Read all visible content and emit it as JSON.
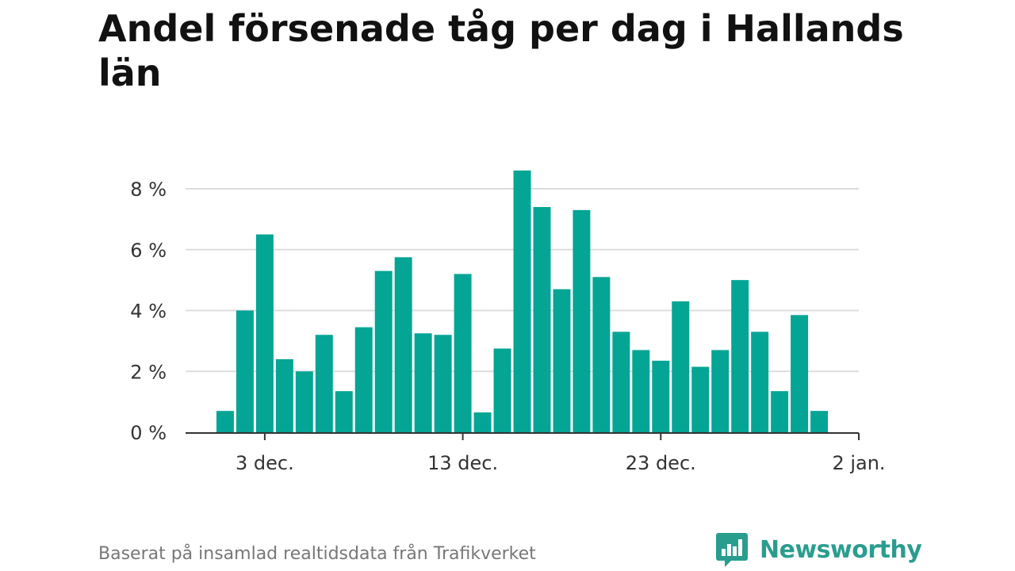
{
  "colors": {
    "bar": "#04a595",
    "grid": "#dddddd",
    "axis": "#333333",
    "logo": "#2a9d8f"
  },
  "footer": {
    "source": "Baserat på insamlad realtidsdata från Trafikverket",
    "brand": "Newsworthy",
    "brand_icon": "bar-chart-speech-bubble-icon"
  },
  "chart_data": {
    "type": "bar",
    "title": "Andel försenade tåg per dag i Hallands län",
    "xlabel": "",
    "ylabel": "",
    "ylim": [
      0,
      8.6
    ],
    "y_ticks": [
      {
        "value": 0,
        "label": "0 %"
      },
      {
        "value": 2,
        "label": "2 %"
      },
      {
        "value": 4,
        "label": "4 %"
      },
      {
        "value": 6,
        "label": "6 %"
      },
      {
        "value": 8,
        "label": "8 %"
      }
    ],
    "x_ticks": [
      {
        "date": "2023-12-03",
        "label": "3 dec."
      },
      {
        "date": "2023-12-13",
        "label": "13 dec."
      },
      {
        "date": "2023-12-23",
        "label": "23 dec."
      },
      {
        "date": "2024-01-02",
        "label": "2 jan."
      }
    ],
    "x_range": [
      "2023-11-29",
      "2024-01-02"
    ],
    "grid": true,
    "legend": "none",
    "units": "%",
    "x": [
      "2023-12-01",
      "2023-12-02",
      "2023-12-03",
      "2023-12-04",
      "2023-12-05",
      "2023-12-06",
      "2023-12-07",
      "2023-12-08",
      "2023-12-09",
      "2023-12-10",
      "2023-12-11",
      "2023-12-12",
      "2023-12-13",
      "2023-12-14",
      "2023-12-15",
      "2023-12-16",
      "2023-12-17",
      "2023-12-18",
      "2023-12-19",
      "2023-12-20",
      "2023-12-21",
      "2023-12-22",
      "2023-12-23",
      "2023-12-24",
      "2023-12-25",
      "2023-12-26",
      "2023-12-27",
      "2023-12-28",
      "2023-12-29",
      "2023-12-30",
      "2023-12-31"
    ],
    "values": [
      0.7,
      4.0,
      6.5,
      2.4,
      2.0,
      3.2,
      1.35,
      3.45,
      5.3,
      5.75,
      3.25,
      3.2,
      5.2,
      0.65,
      2.75,
      8.6,
      7.4,
      4.7,
      7.3,
      5.1,
      3.3,
      2.7,
      2.35,
      4.3,
      2.15,
      2.7,
      5.0,
      3.3,
      1.35,
      3.85,
      0.7
    ]
  }
}
